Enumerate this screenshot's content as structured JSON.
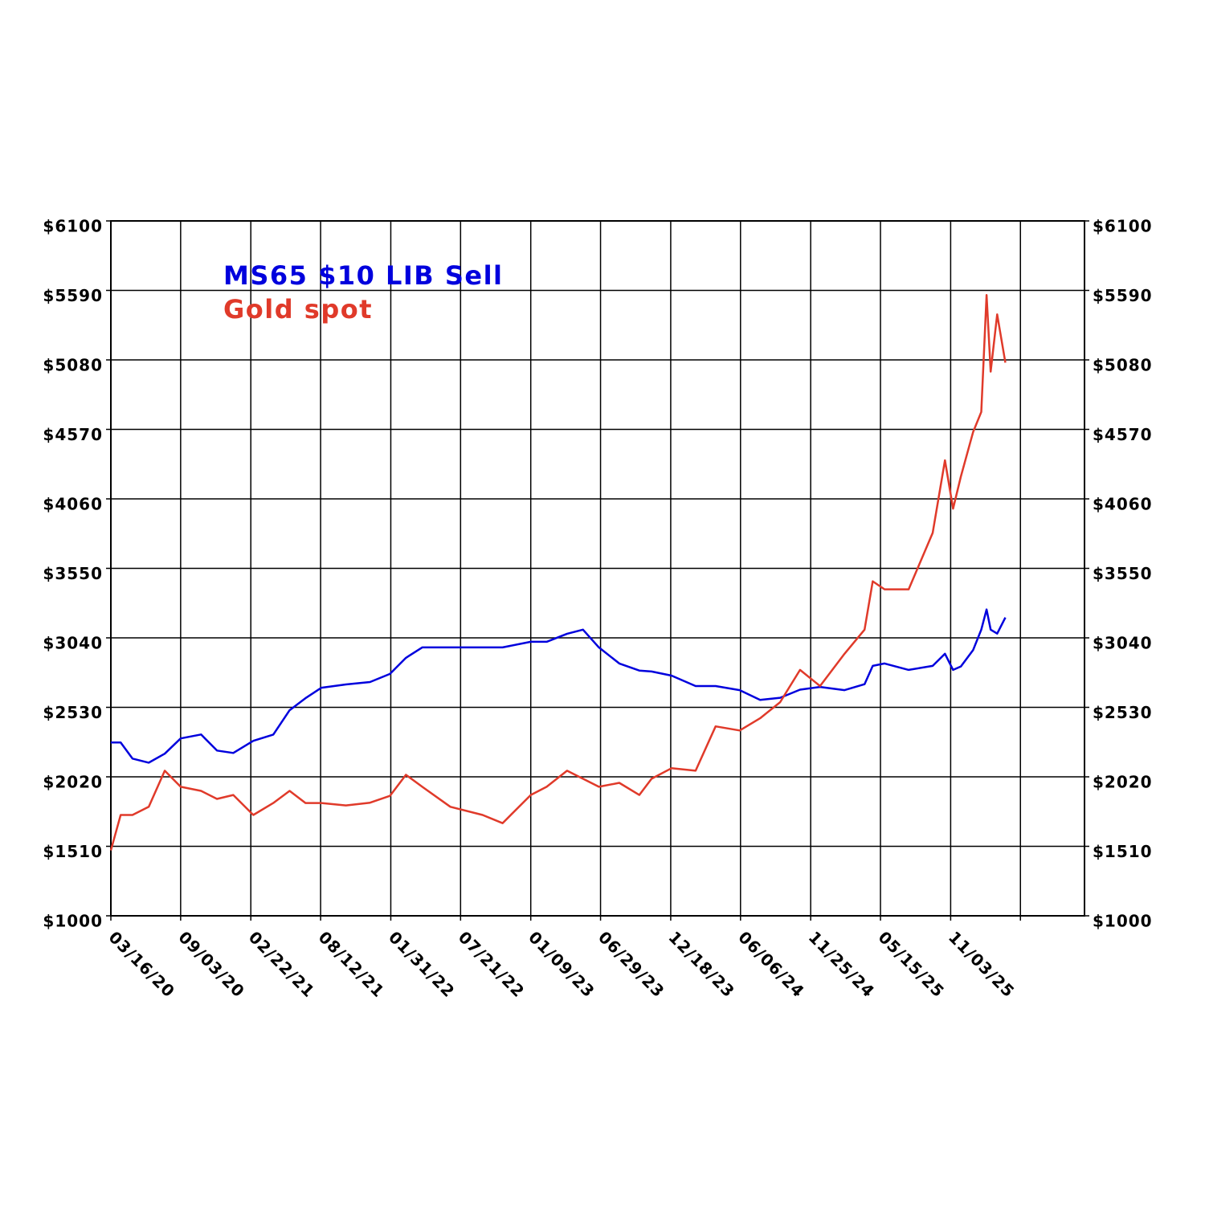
{
  "chart_data": {
    "type": "line",
    "legend": "upper left",
    "grid": true,
    "x": [
      "03/16/20",
      "04/09/20",
      "05/08/20",
      "06/17/20",
      "07/26/20",
      "09/03/20",
      "10/23/20",
      "12/01/20",
      "01/10/21",
      "02/28/21",
      "04/18/21",
      "05/28/21",
      "07/06/21",
      "08/14/21",
      "10/13/21",
      "12/11/21",
      "01/29/22",
      "03/09/22",
      "04/18/22",
      "06/26/22",
      "09/13/22",
      "11/01/22",
      "01/09/23",
      "02/17/23",
      "04/08/23",
      "05/17/23",
      "06/25/23",
      "08/14/23",
      "10/02/23",
      "11/01/23",
      "12/20/23",
      "02/17/24",
      "04/06/24",
      "06/04/24",
      "07/24/24",
      "09/11/24",
      "10/30/24",
      "12/18/24",
      "02/16/25",
      "04/06/25",
      "04/26/25",
      "05/25/25",
      "07/23/25",
      "09/20/25",
      "10/20/25",
      "11/09/25",
      "11/28/25",
      "12/28/25",
      "01/17/26",
      "01/30/26",
      "02/09/26",
      "02/25/26",
      "03/17/26"
    ],
    "series": [
      {
        "name": "MS65 $10 LIB Sell",
        "color": "#0000dd",
        "values": [
          2272,
          2272,
          2154,
          2124,
          2190,
          2302,
          2331,
          2213,
          2195,
          2284,
          2330,
          2509,
          2597,
          2674,
          2698,
          2716,
          2775,
          2893,
          2970,
          2970,
          2970,
          2970,
          3011,
          3011,
          3070,
          3100,
          2970,
          2852,
          2800,
          2793,
          2763,
          2686,
          2686,
          2656,
          2585,
          2600,
          2660,
          2680,
          2656,
          2700,
          2834,
          2852,
          2805,
          2834,
          2923,
          2805,
          2830,
          2950,
          3100,
          3248,
          3100,
          3071,
          3189
        ]
      },
      {
        "name": "Gold spot",
        "color": "#e03a2a",
        "values": [
          1480,
          1740,
          1740,
          1800,
          2065,
          1947,
          1917,
          1858,
          1887,
          1740,
          1828,
          1917,
          1828,
          1828,
          1810,
          1830,
          1880,
          2035,
          1947,
          1800,
          1740,
          1680,
          1887,
          1947,
          2065,
          2006,
          1947,
          1976,
          1887,
          2006,
          2083,
          2065,
          2390,
          2360,
          2450,
          2568,
          2805,
          2686,
          2923,
          3100,
          3455,
          3396,
          3396,
          3810,
          4343,
          3988,
          4224,
          4550,
          4698,
          5556,
          4994,
          5414,
          5060
        ]
      }
    ],
    "xlim": [
      "03/16/20",
      "09/27/26"
    ],
    "xticks": [
      "03/16/20",
      "09/03/20",
      "02/22/21",
      "08/12/21",
      "01/31/22",
      "07/21/22",
      "01/09/23",
      "06/29/23",
      "12/18/23",
      "06/06/24",
      "11/25/24",
      "05/15/25",
      "11/03/25",
      {
        "value": "04/23/26",
        "label": null
      }
    ],
    "ylim": [
      1000,
      6100
    ],
    "yticks": [
      {
        "value": 1000,
        "label": "$1000"
      },
      {
        "value": 1510,
        "label": "$1510"
      },
      {
        "value": 2020,
        "label": "$2020"
      },
      {
        "value": 2530,
        "label": "$2530"
      },
      {
        "value": 3040,
        "label": "$3040"
      },
      {
        "value": 3550,
        "label": "$3550"
      },
      {
        "value": 4060,
        "label": "$4060"
      },
      {
        "value": 4570,
        "label": "$4570"
      },
      {
        "value": 5080,
        "label": "$5080"
      },
      {
        "value": 5590,
        "label": "$5590"
      },
      {
        "value": 6100,
        "label": "$6100"
      }
    ],
    "y2lim": [
      1000,
      6100
    ],
    "y2ticks": [
      {
        "value": 1000,
        "label": "$1000"
      },
      {
        "value": 1510,
        "label": "$1510"
      },
      {
        "value": 2020,
        "label": "$2020"
      },
      {
        "value": 2530,
        "label": "$2530"
      },
      {
        "value": 3040,
        "label": "$3040"
      },
      {
        "value": 3550,
        "label": "$3550"
      },
      {
        "value": 4060,
        "label": "$4060"
      },
      {
        "value": 4570,
        "label": "$4570"
      },
      {
        "value": 5080,
        "label": "$5080"
      },
      {
        "value": 5590,
        "label": "$5590"
      },
      {
        "value": 6100,
        "label": "$6100"
      }
    ]
  }
}
